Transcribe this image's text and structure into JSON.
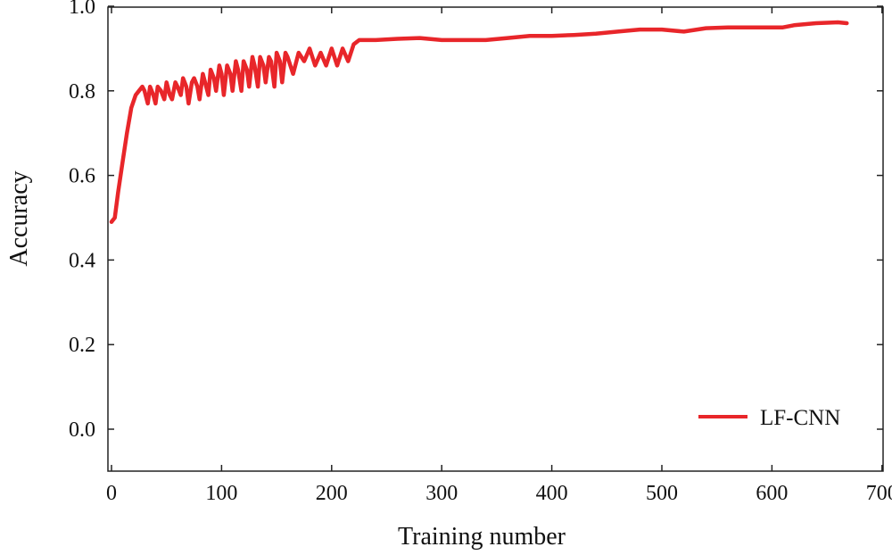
{
  "chart_data": {
    "type": "line",
    "title": "",
    "xlabel": "Training number",
    "ylabel": "Accuracy",
    "xlim": [
      0,
      700
    ],
    "ylim": [
      -0.1,
      1.0
    ],
    "grid": false,
    "legend_position": "bottom-right",
    "x_ticks": [
      "0",
      "100",
      "200",
      "300",
      "400",
      "500",
      "600",
      "700"
    ],
    "y_ticks": [
      "0.0",
      "0.2",
      "0.4",
      "0.6",
      "0.8",
      "1.0"
    ],
    "series": [
      {
        "name": "LF-CNN",
        "color": "#e8262a",
        "x": [
          0,
          3,
          6,
          10,
          14,
          18,
          22,
          25,
          28,
          30,
          33,
          35,
          38,
          40,
          42,
          45,
          48,
          50,
          53,
          55,
          58,
          60,
          63,
          65,
          68,
          70,
          73,
          75,
          78,
          80,
          83,
          85,
          88,
          90,
          93,
          95,
          98,
          100,
          102,
          105,
          108,
          110,
          113,
          115,
          118,
          120,
          123,
          125,
          128,
          130,
          133,
          135,
          138,
          140,
          143,
          145,
          148,
          150,
          153,
          155,
          158,
          160,
          165,
          170,
          175,
          180,
          185,
          190,
          195,
          200,
          205,
          210,
          215,
          220,
          225,
          230,
          240,
          260,
          280,
          300,
          320,
          340,
          360,
          380,
          400,
          420,
          440,
          460,
          480,
          500,
          520,
          540,
          560,
          580,
          600,
          610,
          620,
          640,
          660,
          668
        ],
        "y": [
          0.49,
          0.5,
          0.56,
          0.63,
          0.7,
          0.76,
          0.79,
          0.8,
          0.81,
          0.8,
          0.77,
          0.81,
          0.79,
          0.77,
          0.81,
          0.8,
          0.78,
          0.82,
          0.79,
          0.78,
          0.82,
          0.81,
          0.79,
          0.83,
          0.81,
          0.77,
          0.82,
          0.83,
          0.81,
          0.78,
          0.84,
          0.82,
          0.79,
          0.85,
          0.83,
          0.8,
          0.86,
          0.84,
          0.79,
          0.86,
          0.84,
          0.8,
          0.87,
          0.85,
          0.8,
          0.87,
          0.85,
          0.81,
          0.88,
          0.86,
          0.81,
          0.88,
          0.86,
          0.82,
          0.88,
          0.87,
          0.81,
          0.89,
          0.87,
          0.82,
          0.89,
          0.88,
          0.84,
          0.89,
          0.87,
          0.9,
          0.86,
          0.89,
          0.86,
          0.9,
          0.86,
          0.9,
          0.87,
          0.91,
          0.92,
          0.92,
          0.92,
          0.923,
          0.925,
          0.92,
          0.92,
          0.92,
          0.925,
          0.93,
          0.93,
          0.932,
          0.935,
          0.94,
          0.945,
          0.945,
          0.94,
          0.948,
          0.95,
          0.95,
          0.95,
          0.95,
          0.955,
          0.96,
          0.962,
          0.96
        ]
      }
    ]
  }
}
